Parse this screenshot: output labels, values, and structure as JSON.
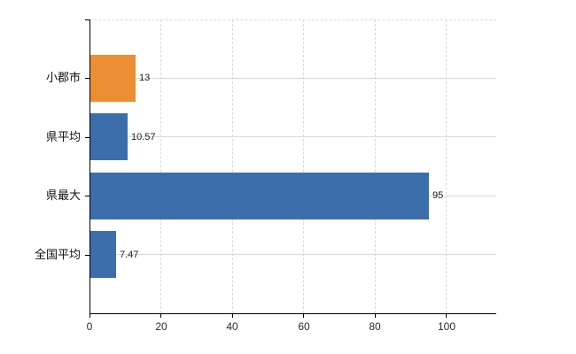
{
  "chart_data": {
    "type": "bar",
    "orientation": "horizontal",
    "title": "",
    "xlabel": "",
    "ylabel": "",
    "categories": [
      "小郡市",
      "県平均",
      "県最大",
      "全国平均"
    ],
    "values": [
      13,
      10.57,
      95,
      7.47
    ],
    "value_labels": [
      "13",
      "10.57",
      "95",
      "7.47"
    ],
    "bar_colors": [
      "#ee8e32",
      "#3c6eac",
      "#3c6eac",
      "#3c6eac"
    ],
    "x_ticks": [
      0,
      20,
      40,
      60,
      80,
      100
    ],
    "x_tick_labels": [
      "0",
      "20",
      "40",
      "60",
      "80",
      "100"
    ],
    "xlim": [
      0,
      114
    ],
    "grid": {
      "vertical_style": "dashed",
      "horizontal_style": "solid",
      "top_border_style": "dashed",
      "color": "#d9d9d9"
    },
    "legend": "none",
    "axis_color": "#000000",
    "label_color": "#111111",
    "background_color": "#ffffff"
  }
}
